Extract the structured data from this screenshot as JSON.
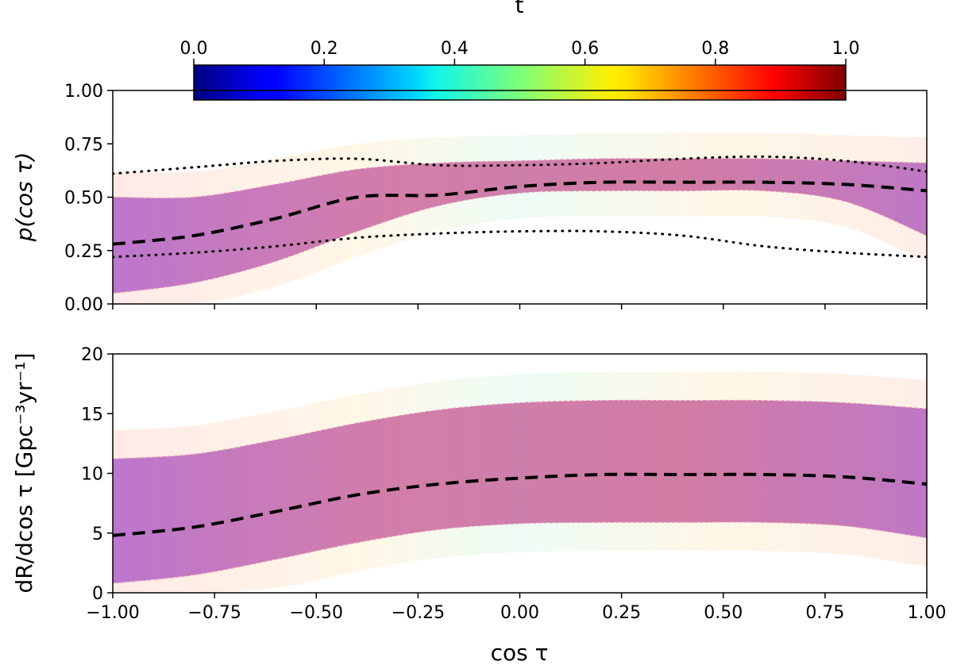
{
  "colorbar": {
    "label": "t",
    "ticks": [
      "0.0",
      "0.2",
      "0.4",
      "0.6",
      "0.8",
      "1.0"
    ],
    "range": [
      0,
      1
    ],
    "colormap": "jet"
  },
  "chart_data": [
    {
      "type": "area",
      "ylabel": "p(cos τ)",
      "xlabel": "",
      "xlim": [
        -1,
        1
      ],
      "ylim": [
        0,
        1
      ],
      "x_ticks": [
        -1.0,
        -0.75,
        -0.5,
        -0.25,
        0.0,
        0.25,
        0.5,
        0.75,
        1.0
      ],
      "y_ticks": [
        "0.00",
        "0.25",
        "0.50",
        "0.75",
        "1.00"
      ],
      "series": [
        {
          "style": "dashed",
          "x": [
            -1.0,
            -0.8,
            -0.6,
            -0.4,
            -0.2,
            0.0,
            0.2,
            0.4,
            0.6,
            0.8,
            1.0
          ],
          "y": [
            0.28,
            0.32,
            0.4,
            0.5,
            0.51,
            0.55,
            0.57,
            0.57,
            0.57,
            0.56,
            0.53
          ]
        },
        {
          "style": "dotted",
          "x": [
            -1.0,
            -0.8,
            -0.6,
            -0.4,
            -0.2,
            0.0,
            0.2,
            0.4,
            0.6,
            0.8,
            1.0
          ],
          "y": [
            0.61,
            0.64,
            0.67,
            0.68,
            0.65,
            0.65,
            0.66,
            0.68,
            0.69,
            0.67,
            0.62
          ]
        },
        {
          "style": "dotted",
          "x": [
            -1.0,
            -0.8,
            -0.6,
            -0.4,
            -0.2,
            0.0,
            0.2,
            0.4,
            0.6,
            0.8,
            1.0
          ],
          "y": [
            0.22,
            0.24,
            0.27,
            0.31,
            0.33,
            0.34,
            0.34,
            0.32,
            0.27,
            0.24,
            0.22
          ]
        }
      ],
      "band": {
        "x": [
          -1.0,
          -0.8,
          -0.6,
          -0.4,
          -0.2,
          0.0,
          0.2,
          0.4,
          0.6,
          0.8,
          1.0
        ],
        "lower": [
          0.05,
          0.1,
          0.2,
          0.34,
          0.46,
          0.52,
          0.53,
          0.53,
          0.53,
          0.48,
          0.32
        ],
        "upper": [
          0.5,
          0.5,
          0.56,
          0.63,
          0.66,
          0.67,
          0.68,
          0.68,
          0.68,
          0.67,
          0.66
        ]
      }
    },
    {
      "type": "area",
      "ylabel": "dR/dcos τ [Gpc⁻³yr⁻¹]",
      "xlabel": "cos τ",
      "xlim": [
        -1,
        1
      ],
      "ylim": [
        0,
        20
      ],
      "x_ticks": [
        "−1.00",
        "−0.75",
        "−0.50",
        "−0.25",
        "0.00",
        "0.25",
        "0.50",
        "0.75",
        "1.00"
      ],
      "y_ticks": [
        "0",
        "5",
        "10",
        "15",
        "20"
      ],
      "series": [
        {
          "style": "dashed",
          "x": [
            -1.0,
            -0.8,
            -0.6,
            -0.4,
            -0.2,
            0.0,
            0.2,
            0.4,
            0.6,
            0.8,
            1.0
          ],
          "y": [
            4.8,
            5.5,
            6.8,
            8.2,
            9.1,
            9.6,
            9.9,
            9.9,
            9.9,
            9.7,
            9.1
          ]
        }
      ],
      "band": {
        "x": [
          -1.0,
          -0.8,
          -0.6,
          -0.4,
          -0.2,
          0.0,
          0.2,
          0.4,
          0.6,
          0.8,
          1.0
        ],
        "lower": [
          0.8,
          1.5,
          2.8,
          4.2,
          5.3,
          5.8,
          5.9,
          5.9,
          5.9,
          5.6,
          4.6
        ],
        "upper": [
          11.2,
          11.6,
          12.8,
          14.2,
          15.3,
          15.9,
          16.1,
          16.1,
          16.1,
          15.9,
          15.4
        ]
      }
    }
  ]
}
